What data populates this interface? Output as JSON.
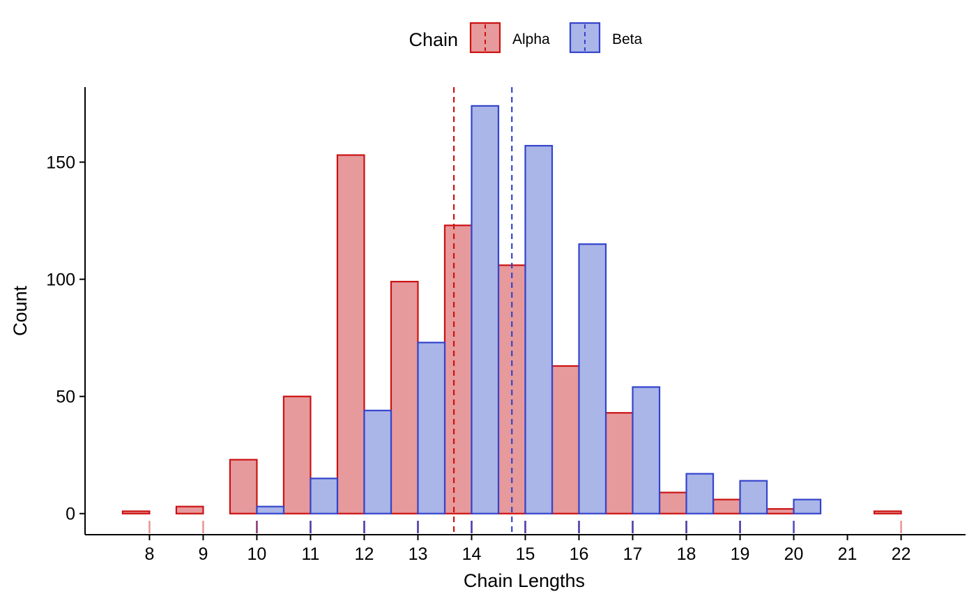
{
  "chart_data": {
    "type": "bar",
    "title": "",
    "xlabel": "Chain Lengths",
    "ylabel": "Count",
    "x": [
      8,
      9,
      10,
      11,
      12,
      13,
      14,
      15,
      16,
      17,
      18,
      19,
      20,
      21,
      22
    ],
    "x_ticks": [
      "8",
      "9",
      "10",
      "11",
      "12",
      "13",
      "14",
      "15",
      "16",
      "17",
      "18",
      "19",
      "20",
      "21",
      "22"
    ],
    "y_ticks": [
      "0",
      "50",
      "100",
      "150"
    ],
    "xlim": [
      6.8,
      23.2
    ],
    "ylim": [
      -9,
      182
    ],
    "legend": {
      "title": "Chain",
      "position": "top"
    },
    "series": [
      {
        "name": "Alpha",
        "fill": "#e69a9c",
        "stroke": "#cc1111",
        "mean": 13.67,
        "values": [
          1,
          3,
          23,
          50,
          153,
          99,
          123,
          106,
          63,
          43,
          9,
          6,
          2,
          0,
          1
        ]
      },
      {
        "name": "Beta",
        "fill": "#aab5e8",
        "stroke": "#3344cc",
        "mean": 14.75,
        "values": [
          0,
          0,
          3,
          15,
          44,
          73,
          174,
          157,
          115,
          54,
          17,
          14,
          6,
          0,
          0
        ]
      }
    ],
    "grid": false,
    "rug": true
  }
}
